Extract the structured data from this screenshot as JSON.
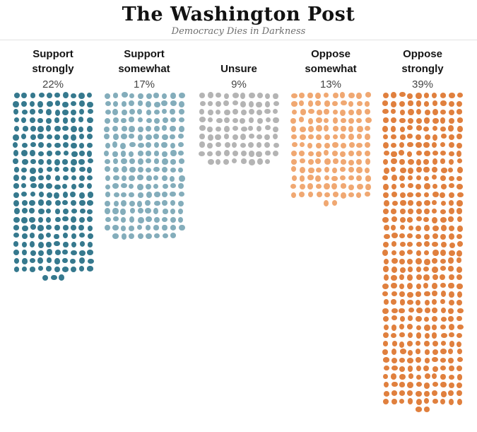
{
  "masthead": {
    "title": "The Washington Post",
    "tagline": "Democracy Dies in Darkness"
  },
  "chart_data": {
    "type": "dot-matrix",
    "categories": [
      "Support strongly",
      "Support somewhat",
      "Unsure",
      "Oppose somewhat",
      "Oppose strongly"
    ],
    "values": [
      22,
      17,
      9,
      13,
      39
    ],
    "unit": "percent",
    "dots_per_row": 10,
    "columns": [
      {
        "label_lines": [
          "Support",
          "strongly"
        ],
        "pct_label": "22%",
        "pct": 22,
        "dot_count": 223,
        "color": "#36798e"
      },
      {
        "label_lines": [
          "Support",
          "somewhat"
        ],
        "pct_label": "17%",
        "pct": 17,
        "dot_count": 178,
        "color": "#84adbb"
      },
      {
        "label_lines": [
          "Unsure"
        ],
        "pct_label": "9%",
        "pct": 9,
        "dot_count": 88,
        "color": "#b4b4b4"
      },
      {
        "label_lines": [
          "Oppose",
          "somewhat"
        ],
        "pct_label": "13%",
        "pct": 13,
        "dot_count": 132,
        "color": "#f0a872"
      },
      {
        "label_lines": [
          "Oppose",
          "strongly"
        ],
        "pct_label": "39%",
        "pct": 39,
        "dot_count": 382,
        "color": "#e0803e"
      }
    ]
  }
}
